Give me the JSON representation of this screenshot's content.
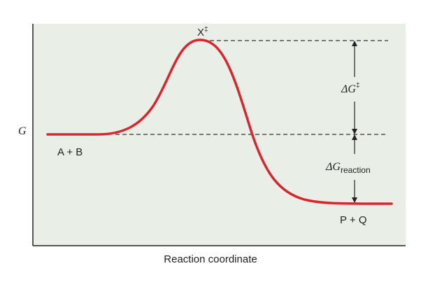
{
  "diagram": {
    "y_axis_label": "G",
    "x_axis_label": "Reaction coordinate",
    "reactants_label": "A + B",
    "products_label": "P + Q",
    "transition_state_label": "X",
    "transition_state_mark": "‡",
    "activation_energy": {
      "symbol": "ΔG",
      "superscript": "‡"
    },
    "reaction_energy": {
      "symbol": "ΔG",
      "subscript": "reaction"
    },
    "colors": {
      "background": "#e9efe6",
      "curve": "#d9262e",
      "axis": "#222222",
      "dashes": "#333333"
    }
  }
}
